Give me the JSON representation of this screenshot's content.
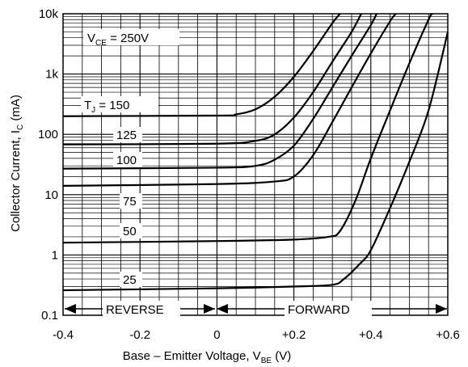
{
  "chart_data": {
    "type": "line",
    "title": "",
    "xlabel": {
      "prefix": "Base – Emitter Voltage, V",
      "sub": "BE",
      "suffix": " (V)"
    },
    "ylabel": {
      "prefix": "Collector Current, I",
      "sub": "C",
      "suffix": " (mA)"
    },
    "xlim": [
      -0.4,
      0.6
    ],
    "ylim": [
      0.1,
      10000
    ],
    "yscale": "log",
    "grid": true,
    "x_ticks": [
      {
        "value": -0.4,
        "label": "-0.4"
      },
      {
        "value": -0.2,
        "label": "-0.2"
      },
      {
        "value": 0,
        "label": "0"
      },
      {
        "value": 0.2,
        "label": "+0.2"
      },
      {
        "value": 0.4,
        "label": "+0.4"
      },
      {
        "value": 0.6,
        "label": "+0.6"
      }
    ],
    "y_ticks": [
      {
        "value": 0.1,
        "label": "0.1"
      },
      {
        "value": 1,
        "label": "1"
      },
      {
        "value": 10,
        "label": "10"
      },
      {
        "value": 100,
        "label": "100"
      },
      {
        "value": 1000,
        "label": "1k"
      },
      {
        "value": 10000,
        "label": "10k"
      }
    ],
    "annotations": {
      "vce": {
        "prefix": "V",
        "sub": "CE",
        "suffix": " = 250V"
      },
      "tj": {
        "prefix": "T",
        "sub": "J",
        "suffix": " = 150"
      },
      "reverse": "REVERSE",
      "forward": "FORWARD"
    },
    "series": [
      {
        "name": "150",
        "points": [
          [
            -0.4,
            200
          ],
          [
            0,
            205
          ],
          [
            0.05,
            215
          ],
          [
            0.1,
            260
          ],
          [
            0.15,
            420
          ],
          [
            0.2,
            900
          ],
          [
            0.25,
            2400
          ],
          [
            0.3,
            7000
          ],
          [
            0.32,
            10000
          ]
        ]
      },
      {
        "name": "125",
        "points": [
          [
            -0.4,
            68
          ],
          [
            0,
            70
          ],
          [
            0.1,
            78
          ],
          [
            0.15,
            100
          ],
          [
            0.2,
            190
          ],
          [
            0.25,
            500
          ],
          [
            0.3,
            1600
          ],
          [
            0.35,
            5000
          ],
          [
            0.375,
            10000
          ]
        ]
      },
      {
        "name": "100",
        "points": [
          [
            -0.4,
            27
          ],
          [
            0,
            28
          ],
          [
            0.1,
            30
          ],
          [
            0.15,
            38
          ],
          [
            0.2,
            65
          ],
          [
            0.25,
            180
          ],
          [
            0.3,
            600
          ],
          [
            0.35,
            2000
          ],
          [
            0.4,
            6500
          ],
          [
            0.415,
            10000
          ]
        ]
      },
      {
        "name": "75",
        "points": [
          [
            -0.4,
            14
          ],
          [
            0,
            15
          ],
          [
            0.15,
            16.5
          ],
          [
            0.2,
            20
          ],
          [
            0.25,
            45
          ],
          [
            0.3,
            160
          ],
          [
            0.35,
            600
          ],
          [
            0.4,
            2200
          ],
          [
            0.45,
            7500
          ],
          [
            0.465,
            10000
          ]
        ]
      },
      {
        "name": "50",
        "points": [
          [
            -0.4,
            1.6
          ],
          [
            0,
            1.7
          ],
          [
            0.2,
            1.8
          ],
          [
            0.29,
            2.0
          ],
          [
            0.32,
            2.5
          ],
          [
            0.36,
            8
          ],
          [
            0.4,
            40
          ],
          [
            0.45,
            250
          ],
          [
            0.5,
            1500
          ],
          [
            0.55,
            8000
          ],
          [
            0.56,
            10000
          ]
        ]
      },
      {
        "name": "25",
        "points": [
          [
            -0.4,
            0.26
          ],
          [
            0,
            0.28
          ],
          [
            0.2,
            0.3
          ],
          [
            0.3,
            0.32
          ],
          [
            0.33,
            0.4
          ],
          [
            0.37,
            0.7
          ],
          [
            0.4,
            1.2
          ],
          [
            0.45,
            6
          ],
          [
            0.5,
            35
          ],
          [
            0.55,
            250
          ],
          [
            0.6,
            5000
          ]
        ]
      }
    ]
  }
}
